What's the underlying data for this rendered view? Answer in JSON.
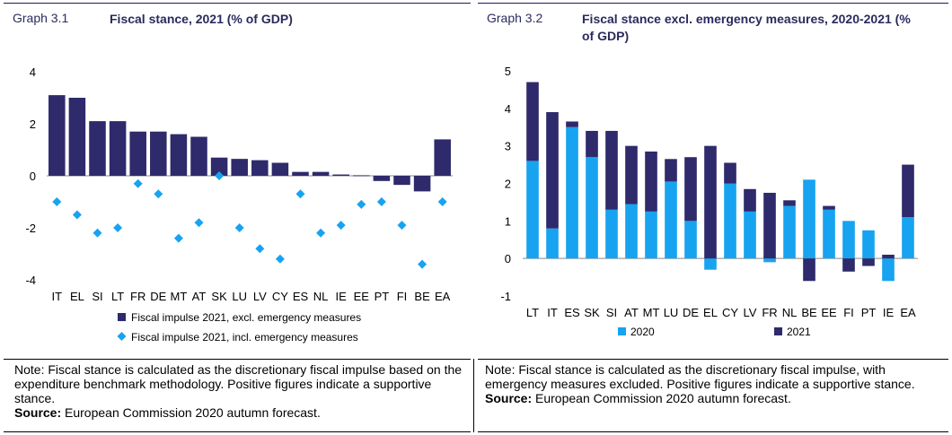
{
  "colors": {
    "dark_navy": "#2e2a6b",
    "light_blue": "#17a3f0",
    "header_text": "#2b2a5e"
  },
  "graph_left": {
    "number": "Graph 3.1",
    "title": "Fiscal stance, 2021 (% of GDP)",
    "note": "Note: Fiscal stance is calculated as the discretionary fiscal impulse based on the expenditure benchmark methodology. Positive figures indicate a supportive stance.",
    "source_label": "Source:",
    "source_text": " European Commission 2020 autumn forecast."
  },
  "graph_right": {
    "number": "Graph 3.2",
    "title": "Fiscal stance excl. emergency measures, 2020-2021 (% of GDP)",
    "note": "Note: Fiscal stance is calculated as the discretionary fiscal impulse, with emergency measures excluded. Positive figures indicate a supportive stance.",
    "source_label": "Source:",
    "source_text": " European Commission 2020 autumn forecast."
  },
  "chart_data": [
    {
      "type": "bar",
      "title": "Fiscal stance, 2021 (% of GDP)",
      "categories": [
        "IT",
        "EL",
        "SI",
        "LT",
        "FR",
        "DE",
        "MT",
        "AT",
        "SK",
        "LU",
        "LV",
        "CY",
        "ES",
        "NL",
        "IE",
        "EE",
        "PT",
        "FI",
        "BE",
        "EA"
      ],
      "series": [
        {
          "name": "Fiscal impulse 2021, excl. emergency measures",
          "kind": "bar",
          "color": "#2e2a6b",
          "values": [
            3.1,
            3.0,
            2.1,
            2.1,
            1.7,
            1.7,
            1.6,
            1.5,
            0.7,
            0.65,
            0.6,
            0.5,
            0.15,
            0.15,
            0.05,
            0.02,
            -0.2,
            -0.35,
            -0.6,
            1.4
          ]
        },
        {
          "name": "Fiscal impulse 2021, incl. emergency measures",
          "kind": "marker",
          "color": "#17a3f0",
          "values": [
            -1.0,
            -1.5,
            -2.2,
            -2.0,
            -0.3,
            -0.7,
            -2.4,
            -1.8,
            0.0,
            -2.0,
            -2.8,
            -3.2,
            -0.7,
            -2.2,
            -1.9,
            -1.1,
            -1.0,
            -1.9,
            -3.4,
            -1.0
          ]
        }
      ],
      "ylim": [
        -4,
        4
      ],
      "yticks": [
        -4,
        -2,
        0,
        2,
        4
      ],
      "legend": "bottom"
    },
    {
      "type": "bar",
      "title": "Fiscal stance excl. emergency measures, 2020-2021 (% of GDP)",
      "stacked": true,
      "categories": [
        "LT",
        "IT",
        "ES",
        "SK",
        "SI",
        "AT",
        "MT",
        "LU",
        "DE",
        "EL",
        "CY",
        "LV",
        "FR",
        "NL",
        "BE",
        "EE",
        "FI",
        "PT",
        "IE",
        "EA"
      ],
      "series": [
        {
          "name": "2020",
          "color": "#17a3f0",
          "values": [
            2.6,
            0.8,
            3.5,
            2.7,
            1.3,
            1.45,
            1.25,
            2.05,
            1.0,
            -0.3,
            2.0,
            1.25,
            -0.1,
            1.4,
            2.1,
            1.3,
            1.0,
            0.75,
            -0.6,
            1.1
          ]
        },
        {
          "name": "2021",
          "color": "#2e2a6b",
          "values": [
            2.1,
            3.1,
            0.15,
            0.7,
            2.1,
            1.55,
            1.6,
            0.6,
            1.7,
            3.0,
            0.55,
            0.6,
            1.75,
            0.15,
            -0.6,
            0.1,
            -0.35,
            -0.2,
            0.1,
            1.4
          ]
        }
      ],
      "ylim": [
        -1,
        5
      ],
      "yticks": [
        -1,
        0,
        1,
        2,
        3,
        4,
        5
      ],
      "legend": "bottom"
    }
  ]
}
